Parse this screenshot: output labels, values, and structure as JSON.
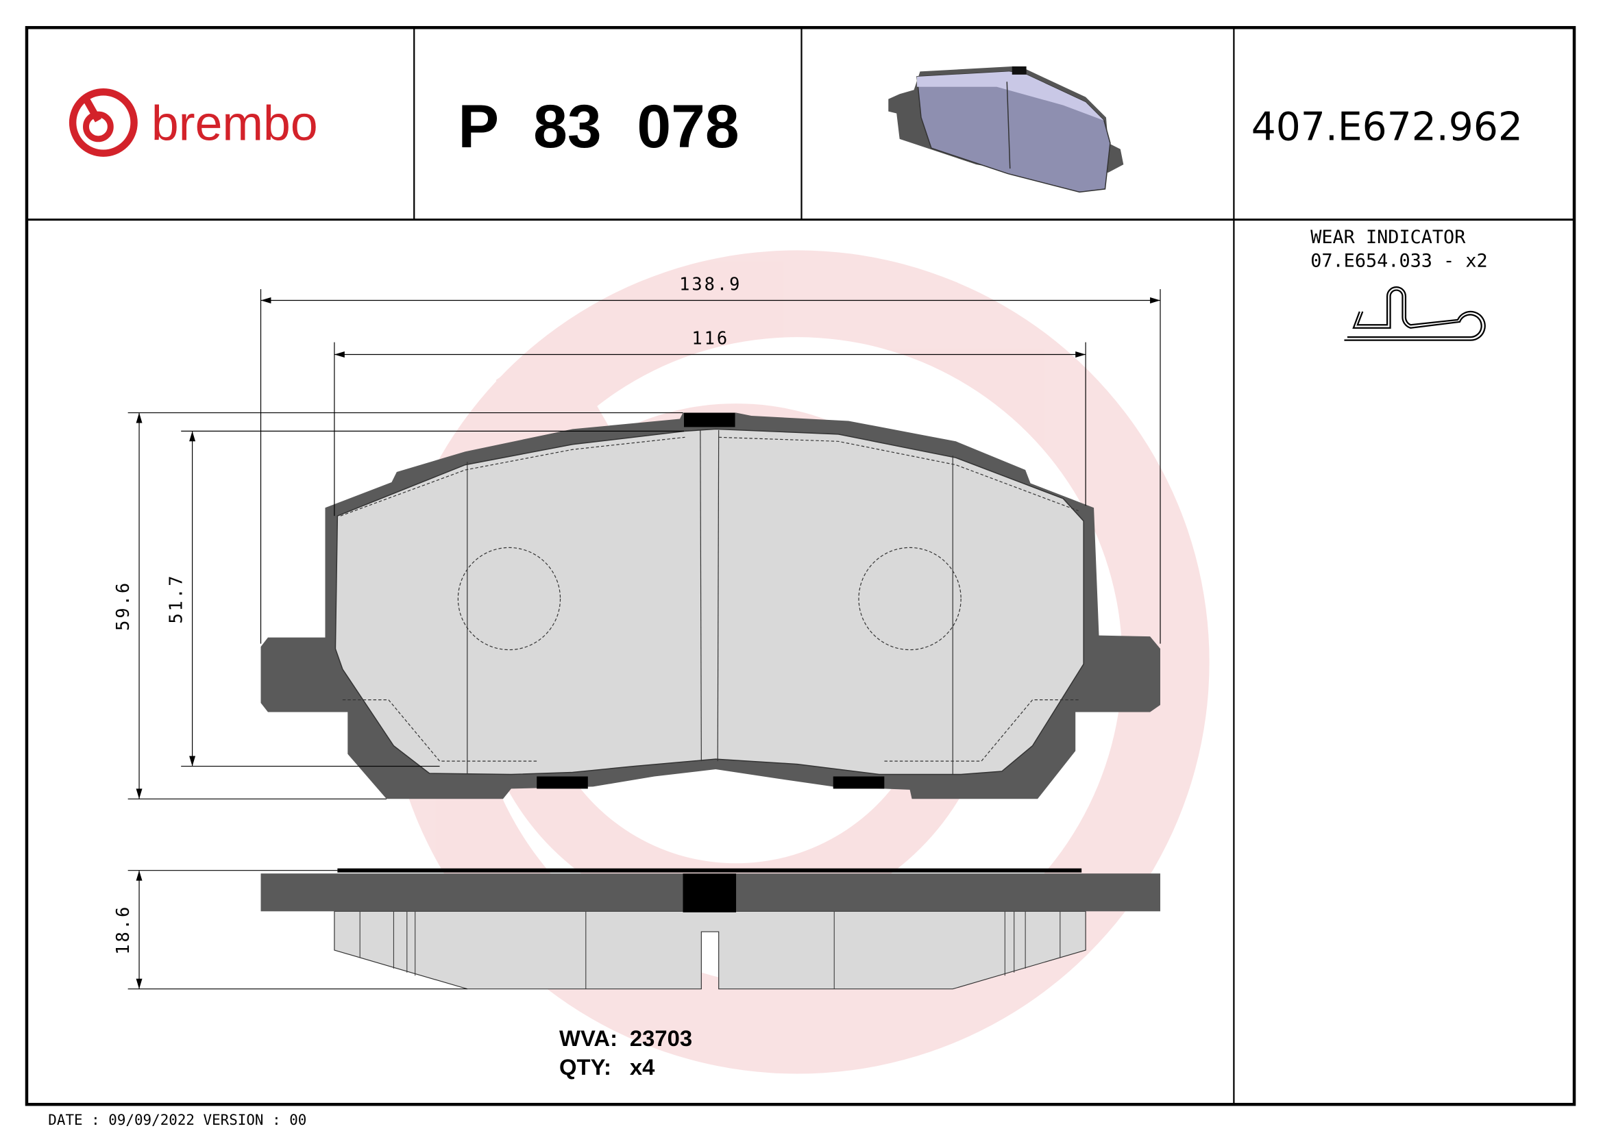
{
  "header": {
    "brand": "brembo",
    "part_number": "P 83 078",
    "reference": "407.E672.962"
  },
  "wear_indicator": {
    "title": "WEAR INDICATOR",
    "code": "07.E654.033 - x2"
  },
  "dimensions": {
    "overall_width": "138.9",
    "inner_width": "116",
    "overall_height": "59.6",
    "friction_height": "51.7",
    "thickness": "18.6"
  },
  "info": {
    "wva_label": "WVA:",
    "wva_value": "23703",
    "qty_label": "QTY:",
    "qty_value": "x4"
  },
  "footer": {
    "date": "DATE : 09/09/2022 VERSION : 00"
  },
  "colors": {
    "brand_red": "#d3222a",
    "backing_plate": "#5a5a5a",
    "friction": "#d9d9d9",
    "render_pad": "#8e8fb0"
  }
}
